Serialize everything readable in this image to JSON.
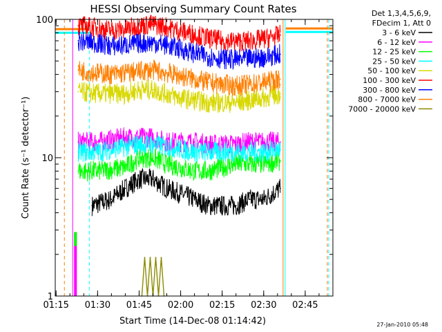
{
  "chart_data": {
    "type": "line",
    "title": "HESSI Observing Summary Count Rates",
    "xlabel": "Start Time (14-Dec-08 01:14:42)",
    "ylabel": "Count Rate (s⁻¹ detector⁻¹)",
    "yscale": "log",
    "ylim": [
      1,
      100
    ],
    "xlim": [
      "01:14:42",
      "02:55:00"
    ],
    "x_ticks": [
      "01:15",
      "01:30",
      "01:45",
      "02:00",
      "02:15",
      "02:30",
      "02:45"
    ],
    "y_ticks": [
      "1",
      "10",
      "100"
    ],
    "legend": {
      "placement": "outside-right",
      "header": [
        "Det 1,3,4,5,6,9,",
        "FDecim 1, Att 0"
      ]
    },
    "series": [
      {
        "name": "3 - 6 keV",
        "color": "#000000",
        "points": [
          [
            "01:28:00",
            4.5
          ],
          [
            "01:35:00",
            5
          ],
          [
            "01:40:00",
            6
          ],
          [
            "01:45:00",
            7
          ],
          [
            "01:50:00",
            7
          ],
          [
            "01:55:00",
            6
          ],
          [
            "02:00:00",
            5.5
          ],
          [
            "02:05:00",
            5
          ],
          [
            "02:10:00",
            4.5
          ],
          [
            "02:15:00",
            4.5
          ],
          [
            "02:20:00",
            4.5
          ],
          [
            "02:25:00",
            5
          ],
          [
            "02:30:00",
            5
          ],
          [
            "02:36:00",
            6
          ]
        ]
      },
      {
        "name": "6 - 12 keV",
        "color": "#ff00ff",
        "points": [
          [
            "01:23:00",
            13
          ],
          [
            "01:30:00",
            13
          ],
          [
            "01:40:00",
            14
          ],
          [
            "01:45:00",
            14
          ],
          [
            "01:50:00",
            14
          ],
          [
            "01:55:00",
            13
          ],
          [
            "02:00:00",
            13
          ],
          [
            "02:05:00",
            13
          ],
          [
            "02:10:00",
            12.5
          ],
          [
            "02:15:00",
            12.5
          ],
          [
            "02:20:00",
            12.5
          ],
          [
            "02:25:00",
            13
          ],
          [
            "02:30:00",
            13
          ],
          [
            "02:36:00",
            13
          ]
        ]
      },
      {
        "name": "12 - 25 keV",
        "color": "#00ff00",
        "points": [
          [
            "01:23:00",
            8
          ],
          [
            "01:30:00",
            8
          ],
          [
            "01:40:00",
            8.5
          ],
          [
            "01:45:00",
            10
          ],
          [
            "01:50:00",
            10
          ],
          [
            "01:55:00",
            9
          ],
          [
            "02:00:00",
            8.5
          ],
          [
            "02:05:00",
            8
          ],
          [
            "02:10:00",
            8
          ],
          [
            "02:15:00",
            8.5
          ],
          [
            "02:20:00",
            9
          ],
          [
            "02:25:00",
            9
          ],
          [
            "02:30:00",
            9
          ],
          [
            "02:36:00",
            9.5
          ]
        ]
      },
      {
        "name": "25 - 50 keV",
        "color": "#00ffff",
        "points": [
          [
            "01:23:00",
            11
          ],
          [
            "01:30:00",
            11
          ],
          [
            "01:40:00",
            12
          ],
          [
            "01:45:00",
            12.5
          ],
          [
            "01:50:00",
            12.5
          ],
          [
            "01:55:00",
            12
          ],
          [
            "02:00:00",
            11.5
          ],
          [
            "02:05:00",
            11
          ],
          [
            "02:10:00",
            11
          ],
          [
            "02:15:00",
            11
          ],
          [
            "02:20:00",
            11
          ],
          [
            "02:25:00",
            11
          ],
          [
            "02:30:00",
            11
          ],
          [
            "02:36:00",
            11.5
          ]
        ]
      },
      {
        "name": "50 - 100 keV",
        "color": "#d8d800",
        "points": [
          [
            "01:23:00",
            30
          ],
          [
            "01:30:00",
            29
          ],
          [
            "01:35:00",
            29
          ],
          [
            "01:40:00",
            29
          ],
          [
            "01:45:00",
            31
          ],
          [
            "01:50:00",
            31
          ],
          [
            "01:55:00",
            29
          ],
          [
            "02:00:00",
            27
          ],
          [
            "02:05:00",
            26
          ],
          [
            "02:10:00",
            25
          ],
          [
            "02:15:00",
            25
          ],
          [
            "02:20:00",
            25
          ],
          [
            "02:25:00",
            26
          ],
          [
            "02:30:00",
            27
          ],
          [
            "02:36:00",
            29
          ]
        ]
      },
      {
        "name": "100 - 300 keV",
        "color": "#ff0000",
        "points": [
          [
            "01:23:00",
            90
          ],
          [
            "01:30:00",
            87
          ],
          [
            "01:35:00",
            83
          ],
          [
            "01:40:00",
            85
          ],
          [
            "01:45:00",
            90
          ],
          [
            "01:50:00",
            92
          ],
          [
            "01:55:00",
            88
          ],
          [
            "02:00:00",
            82
          ],
          [
            "02:05:00",
            78
          ],
          [
            "02:10:00",
            73
          ],
          [
            "02:15:00",
            70
          ],
          [
            "02:20:00",
            69
          ],
          [
            "02:25:00",
            70
          ],
          [
            "02:30:00",
            72
          ],
          [
            "02:36:00",
            77
          ]
        ]
      },
      {
        "name": "300 - 800 keV",
        "color": "#0000ff",
        "points": [
          [
            "01:23:00",
            70
          ],
          [
            "01:30:00",
            67
          ],
          [
            "01:35:00",
            64
          ],
          [
            "01:40:00",
            65
          ],
          [
            "01:45:00",
            67
          ],
          [
            "01:50:00",
            68
          ],
          [
            "01:55:00",
            65
          ],
          [
            "02:00:00",
            61
          ],
          [
            "02:05:00",
            57
          ],
          [
            "02:10:00",
            54
          ],
          [
            "02:15:00",
            52
          ],
          [
            "02:20:00",
            51
          ],
          [
            "02:25:00",
            52
          ],
          [
            "02:30:00",
            53
          ],
          [
            "02:36:00",
            56
          ]
        ]
      },
      {
        "name": "800 - 7000 keV",
        "color": "#ff7f00",
        "points": [
          [
            "01:23:00",
            43
          ],
          [
            "01:30:00",
            41
          ],
          [
            "01:35:00",
            40
          ],
          [
            "01:40:00",
            41
          ],
          [
            "01:45:00",
            42
          ],
          [
            "01:50:00",
            43
          ],
          [
            "01:55:00",
            41
          ],
          [
            "02:00:00",
            39
          ],
          [
            "02:05:00",
            37
          ],
          [
            "02:10:00",
            35
          ],
          [
            "02:15:00",
            34
          ],
          [
            "02:20:00",
            33
          ],
          [
            "02:25:00",
            34
          ],
          [
            "02:30:00",
            35
          ],
          [
            "02:36:00",
            37
          ]
        ]
      },
      {
        "name": "7000 - 20000 keV",
        "color": "#8a8a00",
        "points": [
          [
            "01:46:00",
            1.0
          ],
          [
            "01:47:00",
            1.9
          ],
          [
            "01:48:00",
            1.0
          ],
          [
            "01:49:00",
            1.9
          ],
          [
            "01:50:00",
            1.0
          ],
          [
            "01:51:00",
            1.9
          ],
          [
            "01:52:00",
            1.0
          ],
          [
            "01:53:00",
            1.9
          ],
          [
            "01:54:00",
            1.0
          ]
        ]
      }
    ],
    "bar_segments": [
      {
        "series": "6 - 12 keV",
        "from": "01:21:30",
        "to": "01:22:30",
        "low": 1,
        "high": 2.9
      },
      {
        "series": "12 - 25 keV",
        "from": "01:21:30",
        "to": "01:22:30",
        "low": 2.3,
        "high": 2.9
      }
    ],
    "vertical_markers": [
      {
        "x": "01:18:00",
        "color": "#ff7f00",
        "style": "dashed"
      },
      {
        "x": "01:21:00",
        "color": "#ff00ff",
        "style": "solid"
      },
      {
        "x": "01:27:00",
        "color": "#00ffff",
        "style": "dashed"
      },
      {
        "x": "02:37:00",
        "color": "#ff7f00",
        "style": "solid"
      },
      {
        "x": "02:37:45",
        "color": "#00ffff",
        "style": "solid"
      },
      {
        "x": "02:53:00",
        "color": "#ff7f00",
        "style": "dashed"
      },
      {
        "x": "02:53:30",
        "color": "#00ffff",
        "style": "dashed"
      }
    ],
    "offline_levels": [
      {
        "color": "#00ffff",
        "from": "01:14:42",
        "to": "01:27:00",
        "y": 80
      },
      {
        "color": "#ff7f00",
        "from": "01:14:42",
        "to": "01:27:00",
        "y": 85
      },
      {
        "color": "#ff7f00",
        "from": "02:38:00",
        "to": "02:55:00",
        "y": 86
      },
      {
        "color": "#00ffff",
        "from": "02:38:00",
        "to": "02:55:00",
        "y": 81
      }
    ]
  },
  "footer": {
    "timestamp": "27-Jan-2010 05:48"
  }
}
